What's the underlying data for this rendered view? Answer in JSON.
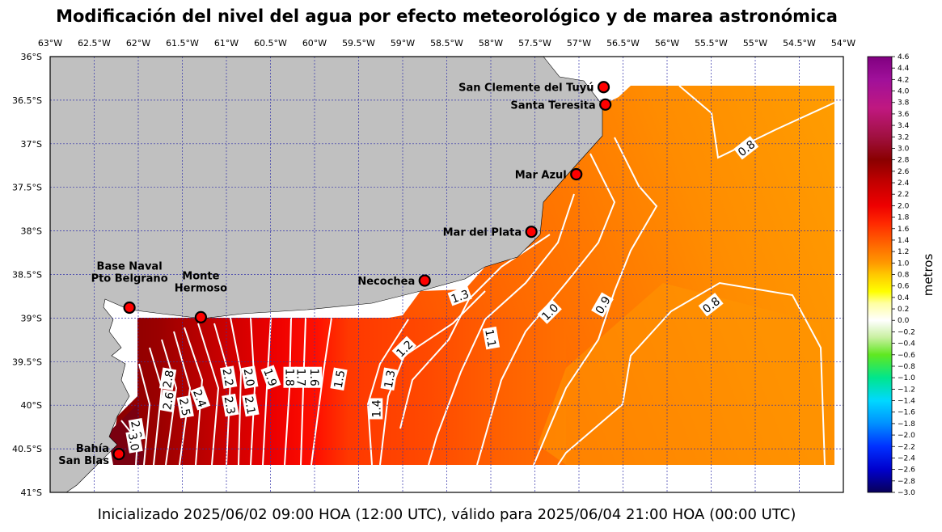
{
  "title": "Modificación del nivel del agua por efecto meteorológico y de marea astronómica",
  "caption": "Inicializado 2025/06/02 09:00 HOA (12:00 UTC), válido para 2025/06/04 21:00 HOA (00:00 UTC)",
  "map": {
    "lon_range": [
      -63,
      -54
    ],
    "lat_range": [
      -41,
      -36
    ],
    "lon_ticks": [
      {
        "v": -63,
        "t": "63°W"
      },
      {
        "v": -62.5,
        "t": "62.5°W"
      },
      {
        "v": -62,
        "t": "62°W"
      },
      {
        "v": -61.5,
        "t": "61.5°W"
      },
      {
        "v": -61,
        "t": "61°W"
      },
      {
        "v": -60.5,
        "t": "60.5°W"
      },
      {
        "v": -60,
        "t": "60°W"
      },
      {
        "v": -59.5,
        "t": "59.5°W"
      },
      {
        "v": -59,
        "t": "59°W"
      },
      {
        "v": -58.5,
        "t": "58.5°W"
      },
      {
        "v": -58,
        "t": "58°W"
      },
      {
        "v": -57.5,
        "t": "57.5°W"
      },
      {
        "v": -57,
        "t": "57°W"
      },
      {
        "v": -56.5,
        "t": "56.5°W"
      },
      {
        "v": -56,
        "t": "56°W"
      },
      {
        "v": -55.5,
        "t": "55.5°W"
      },
      {
        "v": -55,
        "t": "55°W"
      },
      {
        "v": -54.5,
        "t": "54.5°W"
      },
      {
        "v": -54,
        "t": "54°W"
      }
    ],
    "lat_ticks": [
      {
        "v": -36,
        "t": "36°S"
      },
      {
        "v": -36.5,
        "t": "36.5°S"
      },
      {
        "v": -37,
        "t": "37°S"
      },
      {
        "v": -37.5,
        "t": "37.5°S"
      },
      {
        "v": -38,
        "t": "38°S"
      },
      {
        "v": -38.5,
        "t": "38.5°S"
      },
      {
        "v": -39,
        "t": "39°S"
      },
      {
        "v": -39.5,
        "t": "39.5°S"
      },
      {
        "v": -40,
        "t": "40°S"
      },
      {
        "v": -40.5,
        "t": "40.5°S"
      },
      {
        "v": -41,
        "t": "41°S"
      }
    ],
    "grid": true,
    "colors": {
      "land": "#c0c0c0",
      "grid": "#3333aa",
      "contour": "#ffffff",
      "marker": "#ff0000"
    }
  },
  "locations": [
    {
      "name": "San Clemente del Tuyú",
      "lines": [
        "San Clemente del Tuyú"
      ],
      "lon": -56.72,
      "lat": -36.35,
      "label_anchor": "left"
    },
    {
      "name": "Santa Teresita",
      "lines": [
        "Santa Teresita"
      ],
      "lon": -56.7,
      "lat": -36.55,
      "label_anchor": "left"
    },
    {
      "name": "Mar Azul",
      "lines": [
        "Mar Azul"
      ],
      "lon": -57.03,
      "lat": -37.35,
      "label_anchor": "left"
    },
    {
      "name": "Mar del Plata",
      "lines": [
        "Mar del Plata"
      ],
      "lon": -57.54,
      "lat": -38.01,
      "label_anchor": "left"
    },
    {
      "name": "Necochea",
      "lines": [
        "Necochea"
      ],
      "lon": -58.75,
      "lat": -38.57,
      "label_anchor": "left"
    },
    {
      "name": "Base Naval Pto Belgrano",
      "lines": [
        "Base Naval",
        "Pto Belgrano"
      ],
      "lon": -62.1,
      "lat": -38.88,
      "label_anchor": "above"
    },
    {
      "name": "Monte Hermoso",
      "lines": [
        "Monte",
        "Hermoso"
      ],
      "lon": -61.29,
      "lat": -38.99,
      "label_anchor": "above"
    },
    {
      "name": "Bahía San Blas",
      "lines": [
        "Bahía",
        "San Blas"
      ],
      "lon": -62.22,
      "lat": -40.56,
      "label_anchor": "left"
    }
  ],
  "contour_labels": [
    {
      "t": "0.8",
      "lon": -55.1,
      "lat": -37.05,
      "rot": -38
    },
    {
      "t": "0.8",
      "lon": -55.5,
      "lat": -38.85,
      "rot": -38
    },
    {
      "t": "0.9",
      "lon": -56.73,
      "lat": -38.85,
      "rot": -60
    },
    {
      "t": "1.0",
      "lon": -57.33,
      "lat": -38.93,
      "rot": -45
    },
    {
      "t": "1.1",
      "lon": -58.0,
      "lat": -39.23,
      "rot": 80
    },
    {
      "t": "1.2",
      "lon": -58.98,
      "lat": -39.35,
      "rot": -45
    },
    {
      "t": "1.3",
      "lon": -58.35,
      "lat": -38.75,
      "rot": -20
    },
    {
      "t": "1.3",
      "lon": -59.15,
      "lat": -39.7,
      "rot": -80
    },
    {
      "t": "1.4",
      "lon": -59.3,
      "lat": -40.04,
      "rot": -90
    },
    {
      "t": "1.5",
      "lon": -59.72,
      "lat": -39.7,
      "rot": -80
    },
    {
      "t": "1.6",
      "lon": -60.0,
      "lat": -39.68,
      "rot": 90
    },
    {
      "t": "1.7",
      "lon": -60.15,
      "lat": -39.68,
      "rot": 90
    },
    {
      "t": "1.8",
      "lon": -60.28,
      "lat": -39.68,
      "rot": 90
    },
    {
      "t": "1.9",
      "lon": -60.5,
      "lat": -39.68,
      "rot": 70
    },
    {
      "t": "2.0",
      "lon": -60.74,
      "lat": -39.68,
      "rot": 80
    },
    {
      "t": "2.1",
      "lon": -60.73,
      "lat": -40.0,
      "rot": 80
    },
    {
      "t": "2.2",
      "lon": -60.98,
      "lat": -39.68,
      "rot": 80
    },
    {
      "t": "2.3",
      "lon": -60.96,
      "lat": -40.0,
      "rot": 80
    },
    {
      "t": "2.4",
      "lon": -61.3,
      "lat": -39.92,
      "rot": 70
    },
    {
      "t": "2.5",
      "lon": -61.47,
      "lat": -40.02,
      "rot": 80
    },
    {
      "t": "2.6",
      "lon": -61.66,
      "lat": -39.95,
      "rot": -80
    },
    {
      "t": "2.8",
      "lon": -61.66,
      "lat": -39.7,
      "rot": -80
    },
    {
      "t": "2.8",
      "lon": -62.02,
      "lat": -40.28,
      "rot": 80
    },
    {
      "t": "3.0",
      "lon": -62.05,
      "lat": -40.42,
      "rot": 80
    }
  ],
  "colorbar": {
    "label": "metros",
    "min": -3.0,
    "max": 4.6,
    "step": 0.2,
    "ticks": [
      "4.6",
      "4.4",
      "4.2",
      "4.0",
      "3.8",
      "3.6",
      "3.4",
      "3.2",
      "3.0",
      "2.8",
      "2.6",
      "2.4",
      "2.2",
      "2.0",
      "1.8",
      "1.6",
      "1.4",
      "1.2",
      "1.0",
      "0.8",
      "0.6",
      "0.4",
      "0.2",
      "0.0",
      "−0.2",
      "−0.4",
      "−0.6",
      "−0.8",
      "−1.0",
      "−1.2",
      "−1.4",
      "−1.6",
      "−1.8",
      "−2.0",
      "−2.2",
      "−2.4",
      "−2.6",
      "−2.8",
      "−3.0"
    ],
    "stops": [
      {
        "v": -3.0,
        "c": "#08005a"
      },
      {
        "v": -2.6,
        "c": "#0000cd"
      },
      {
        "v": -2.2,
        "c": "#0030ff"
      },
      {
        "v": -1.8,
        "c": "#0090ff"
      },
      {
        "v": -1.4,
        "c": "#00d8ff"
      },
      {
        "v": -1.0,
        "c": "#00e68c"
      },
      {
        "v": -0.6,
        "c": "#60e820"
      },
      {
        "v": -0.3,
        "c": "#c8f0a0"
      },
      {
        "v": 0.0,
        "c": "#ffffff"
      },
      {
        "v": 0.3,
        "c": "#ffffa0"
      },
      {
        "v": 0.5,
        "c": "#ffff00"
      },
      {
        "v": 0.8,
        "c": "#ffc800"
      },
      {
        "v": 1.0,
        "c": "#ff9900"
      },
      {
        "v": 1.3,
        "c": "#ff6a00"
      },
      {
        "v": 1.7,
        "c": "#ff2800"
      },
      {
        "v": 2.0,
        "c": "#ee0000"
      },
      {
        "v": 2.4,
        "c": "#c40000"
      },
      {
        "v": 2.8,
        "c": "#8a0000"
      },
      {
        "v": 3.2,
        "c": "#a01040"
      },
      {
        "v": 3.7,
        "c": "#c01880"
      },
      {
        "v": 4.2,
        "c": "#a0109a"
      },
      {
        "v": 4.6,
        "c": "#800080"
      }
    ]
  }
}
